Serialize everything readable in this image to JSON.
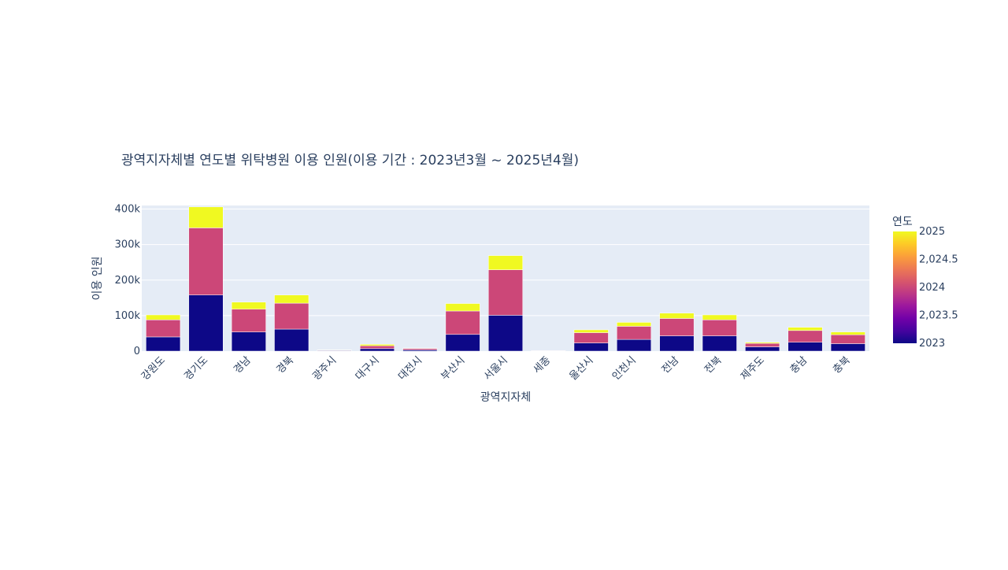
{
  "chart_data": {
    "type": "bar",
    "barmode": "stack",
    "title": "광역지자체별 연도별 위탁병원 이용 인원(이용 기간 : 2023년3월 ~ 2025년4월)",
    "xlabel": "광역지자체",
    "ylabel": "이용 인원",
    "categories": [
      "강원도",
      "경기도",
      "경남",
      "경북",
      "광주시",
      "대구시",
      "대전시",
      "부산시",
      "서울시",
      "세종",
      "울산시",
      "인천시",
      "전남",
      "전북",
      "제주도",
      "충남",
      "충북"
    ],
    "series": [
      {
        "year": 2023,
        "color": "#0d0887",
        "values": [
          40000,
          158000,
          54000,
          62000,
          1500,
          7000,
          3500,
          47000,
          101000,
          500,
          23000,
          33000,
          43000,
          43000,
          12000,
          25000,
          21000
        ]
      },
      {
        "year": 2024,
        "color": "#cc4778",
        "values": [
          48000,
          189000,
          64000,
          73000,
          1500,
          8000,
          4000,
          66000,
          128000,
          1000,
          29000,
          37000,
          49000,
          45000,
          10000,
          33000,
          25000
        ]
      },
      {
        "year": 2025,
        "color": "#f0f921",
        "values": [
          14000,
          59000,
          20000,
          23000,
          500,
          4000,
          1000,
          21000,
          40000,
          0,
          8000,
          11000,
          15000,
          14000,
          3000,
          9000,
          8000
        ]
      }
    ],
    "yticks": [
      0,
      100000,
      200000,
      300000,
      400000
    ],
    "ytick_labels": [
      "0",
      "100k",
      "200k",
      "300k",
      "400k"
    ],
    "ylim": [
      0,
      410000
    ],
    "colorbar": {
      "title": "연도",
      "ticks": [
        2023,
        2023.5,
        2024,
        2024.5,
        2025
      ],
      "tick_labels": [
        "2023",
        "2,023.5",
        "2024",
        "2,024.5",
        "2025"
      ],
      "stops": [
        "#0d0887",
        "#46039f",
        "#7201a8",
        "#9c179e",
        "#bd3786",
        "#d8576b",
        "#ed7953",
        "#fb9f3a",
        "#fdca26",
        "#f0f921"
      ]
    },
    "plot_bg": "#e5ecf6",
    "grid": true
  }
}
